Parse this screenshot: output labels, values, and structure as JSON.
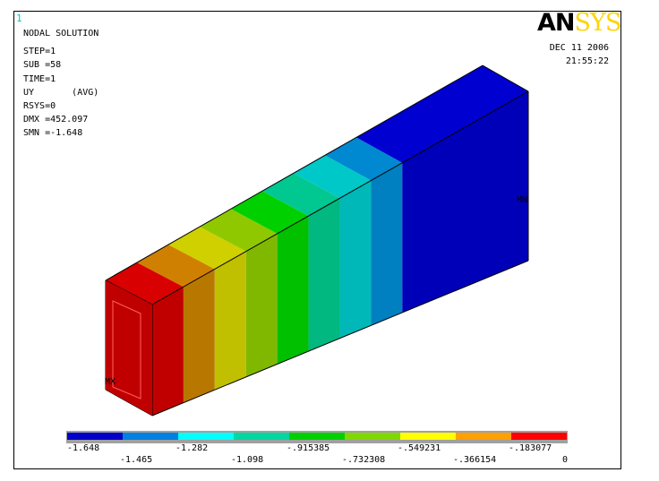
{
  "window_number": "1",
  "info_lines": [
    "NODAL SOLUTION",
    "",
    "STEP=1",
    "SUB =58",
    "TIME=1",
    "UY       (AVG)",
    "RSYS=0",
    "DMX =452.097",
    "SMN =-1.648"
  ],
  "logo": {
    "an": "AN",
    "sys": "SYS"
  },
  "date": "DEC 11 2006",
  "time": "21:55:22",
  "markers": {
    "mx": "MX",
    "mn": "MN"
  },
  "legend": {
    "colors": [
      "#0000c8",
      "#0080e0",
      "#00ffff",
      "#00d8a0",
      "#00d000",
      "#80d800",
      "#ffff00",
      "#ffa000",
      "#ff0000"
    ],
    "labels_top": [
      "-1.648",
      "-1.282",
      "-.915385",
      "-.549231",
      "-.183077"
    ],
    "labels_bottom": [
      "-1.465",
      "-1.098",
      "-.732308",
      "-.366154",
      "0"
    ]
  },
  "beam_colors": {
    "front": [
      "#c00000",
      "#b87800",
      "#c0c000",
      "#80b800",
      "#00c000",
      "#00b880",
      "#00b8b8",
      "#0080c0"
    ],
    "top": [
      "#d80000",
      "#d08000",
      "#d0d000",
      "#90c800",
      "#00d000",
      "#00c890",
      "#00c8c8",
      "#0088d0"
    ],
    "end_front": "#0000b8",
    "end_top": "#0000d0",
    "end_side": "#0000c0",
    "face": "#c00000"
  }
}
